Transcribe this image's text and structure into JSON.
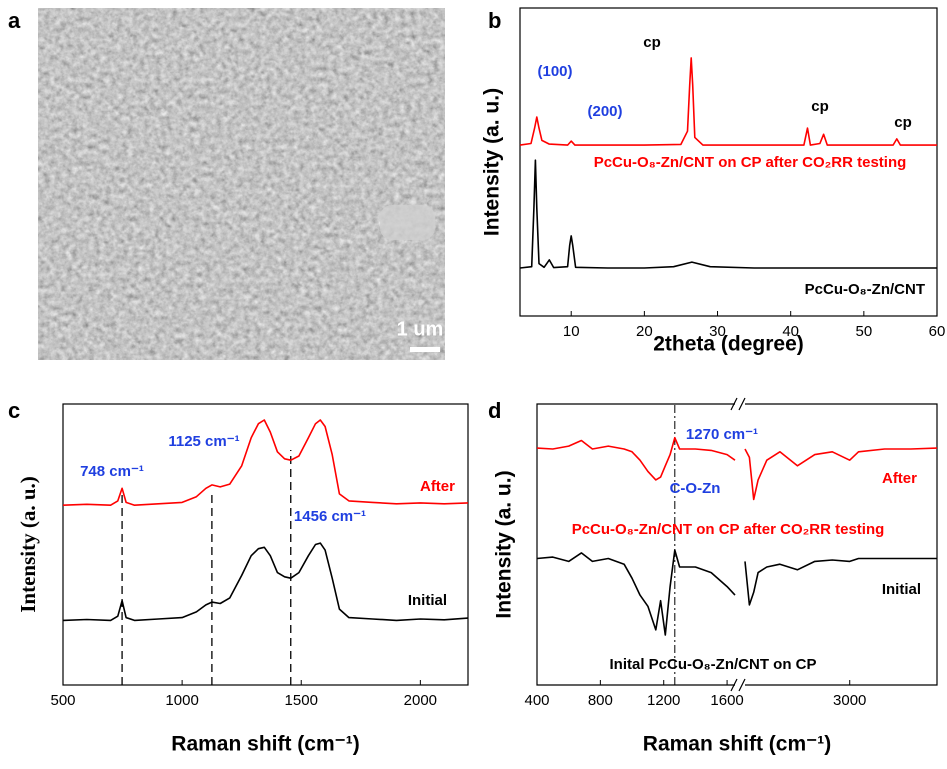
{
  "image_panel": {
    "label": "a",
    "scale_bar_label": "1 um"
  },
  "chart_data": [
    {
      "type": "line",
      "label": "b",
      "x_label": "2theta (degree)",
      "y_label": "Intensity (a. u.)",
      "xlim": [
        3,
        60
      ],
      "xticks": [
        10,
        20,
        30,
        40,
        50,
        60
      ],
      "ylim": [
        0,
        100
      ],
      "series": [
        {
          "name": "PcCu-O₈-Zn/CNT on CP after CO₂RR testing",
          "color": "#ff0000",
          "x": [
            3,
            4.5,
            5,
            5.3,
            5.6,
            6,
            7,
            9.5,
            10,
            10.5,
            15,
            20,
            25,
            25.9,
            26.2,
            26.4,
            26.6,
            26.9,
            28,
            35,
            41.8,
            42.3,
            42.7,
            44,
            44.5,
            45,
            50,
            54,
            54.5,
            55,
            60
          ],
          "values": [
            55.5,
            56,
            61,
            64.6,
            61,
            57,
            55.8,
            55.5,
            56.8,
            55.5,
            55.5,
            55.5,
            55.7,
            60,
            75,
            83.8,
            75,
            58,
            55.5,
            55.5,
            55.5,
            61,
            55.5,
            56,
            59,
            55.5,
            55.5,
            55.5,
            57.5,
            55.5,
            55.5
          ]
        },
        {
          "name": "PcCu-O₈-Zn/CNT",
          "color": "#000000",
          "x": [
            3,
            4.6,
            4.9,
            5.1,
            5.3,
            5.6,
            6.3,
            7,
            7.6,
            9.5,
            9.8,
            10,
            10.2,
            10.6,
            15,
            20,
            24,
            26.5,
            29,
            35,
            60
          ],
          "values": [
            15.6,
            16,
            35,
            50.6,
            35,
            17,
            15.8,
            18.2,
            15.7,
            16,
            23,
            26,
            23,
            15.8,
            15.6,
            15.6,
            16,
            17.5,
            16,
            15.6,
            15.6
          ]
        }
      ],
      "annotations": [
        {
          "text": "(100)",
          "color": "#1f3fe0"
        },
        {
          "text": "(200)",
          "color": "#1f3fe0"
        },
        {
          "text": "cp",
          "color": "#000000"
        },
        {
          "text": "cp",
          "color": "#000000"
        },
        {
          "text": "cp",
          "color": "#000000"
        }
      ]
    },
    {
      "type": "line",
      "label": "c",
      "x_label": "Raman shift (cm⁻¹)",
      "y_label": "Intensity (a. u.)",
      "xlim": [
        500,
        2200
      ],
      "xticks": [
        500,
        1000,
        1500,
        2000
      ],
      "ylim": [
        0,
        100
      ],
      "vlines": [
        748,
        1125,
        1456
      ],
      "series": [
        {
          "name": "After",
          "color": "#ff0000",
          "x": [
            500,
            600,
            700,
            730,
            748,
            765,
            800,
            900,
            1000,
            1060,
            1100,
            1125,
            1160,
            1200,
            1250,
            1290,
            1320,
            1345,
            1370,
            1400,
            1430,
            1456,
            1490,
            1530,
            1560,
            1580,
            1600,
            1630,
            1660,
            1700,
            1800,
            1900,
            2000,
            2100,
            2200
          ],
          "values": [
            64,
            64.3,
            64,
            65.5,
            70,
            65,
            64,
            64.5,
            65,
            67,
            70,
            71.2,
            70.5,
            71.5,
            78,
            88,
            93,
            94.3,
            90,
            83,
            80.5,
            80,
            81.5,
            88,
            93,
            94.3,
            92,
            82,
            68,
            65.5,
            65,
            64.5,
            64.8,
            64.5,
            64.8
          ]
        },
        {
          "name": "Initial",
          "color": "#000000",
          "x": [
            500,
            600,
            700,
            730,
            748,
            765,
            800,
            900,
            1000,
            1060,
            1100,
            1125,
            1160,
            1200,
            1250,
            1290,
            1320,
            1345,
            1370,
            1400,
            1430,
            1456,
            1490,
            1530,
            1560,
            1580,
            1600,
            1630,
            1660,
            1700,
            1800,
            1900,
            2000,
            2100,
            2200
          ],
          "values": [
            23,
            23.3,
            23,
            24.5,
            30,
            24,
            23,
            23.5,
            24,
            26,
            28.5,
            29.5,
            29,
            31,
            39,
            46,
            48.5,
            49,
            46,
            40,
            38.5,
            38,
            40,
            46,
            50,
            50.5,
            48,
            38,
            27,
            24,
            23.5,
            23,
            23.5,
            23.2,
            23.8
          ]
        }
      ],
      "annotations": [
        {
          "text": "748 cm⁻¹",
          "color": "#1f3fe0"
        },
        {
          "text": "1125 cm⁻¹",
          "color": "#1f3fe0"
        },
        {
          "text": "1456 cm⁻¹",
          "color": "#1f3fe0"
        }
      ]
    },
    {
      "type": "line",
      "label": "d",
      "x_label": "Raman shift (cm⁻¹)",
      "y_label": "Intensity (a. u.)",
      "xlim": [
        400,
        4000
      ],
      "xbreak": [
        1650,
        1800
      ],
      "xticks": [
        400,
        800,
        1200,
        1600,
        3000
      ],
      "ylim": [
        0,
        100
      ],
      "vlines": [
        1270
      ],
      "series": [
        {
          "name": "After",
          "color": "#ff0000",
          "x": [
            400,
            500,
            600,
            680,
            750,
            850,
            950,
            1000,
            1050,
            1100,
            1150,
            1180,
            1210,
            1240,
            1270,
            1300,
            1400,
            1500,
            1600,
            1650,
            1725,
            1800,
            1850,
            1900,
            1950,
            2050,
            2200,
            2400,
            2600,
            2800,
            3000,
            3100,
            3400,
            3700,
            4000
          ],
          "values": [
            84.3,
            84,
            85,
            87,
            84,
            85,
            84,
            83,
            80,
            76,
            73,
            74,
            78,
            82,
            88,
            84,
            84,
            83.5,
            82,
            80,
            null,
            84,
            81,
            66,
            73,
            80,
            83,
            78,
            82,
            83,
            80,
            83,
            84,
            84,
            84.3
          ]
        },
        {
          "name": "Initial",
          "color": "#000000",
          "x": [
            400,
            500,
            600,
            680,
            750,
            850,
            950,
            1000,
            1050,
            1100,
            1150,
            1180,
            1210,
            1240,
            1270,
            1300,
            1400,
            1500,
            1600,
            1650,
            1725,
            1800,
            1850,
            1900,
            1950,
            2050,
            2200,
            2400,
            2600,
            2800,
            3000,
            3100,
            3400,
            3700,
            4000
          ],
          "values": [
            45,
            45.5,
            44,
            47,
            44,
            45,
            43,
            38,
            32,
            28,
            19.6,
            30,
            17.8,
            35,
            48,
            42,
            42,
            40,
            35,
            32,
            null,
            44,
            28.5,
            33,
            40,
            42,
            43,
            41,
            44,
            44.5,
            44,
            45,
            45,
            45,
            45
          ]
        }
      ],
      "annotations": [
        {
          "text": "1270 cm⁻¹",
          "color": "#1f3fe0"
        },
        {
          "text": "C-O-Zn",
          "color": "#1f3fe0"
        },
        {
          "text": "PcCu-O₈-Zn/CNT on CP after  CO₂RR testing",
          "color": "#ff0000"
        },
        {
          "text": "Inital PcCu-O₈-Zn/CNT on CP",
          "color": "#000000"
        }
      ]
    }
  ]
}
